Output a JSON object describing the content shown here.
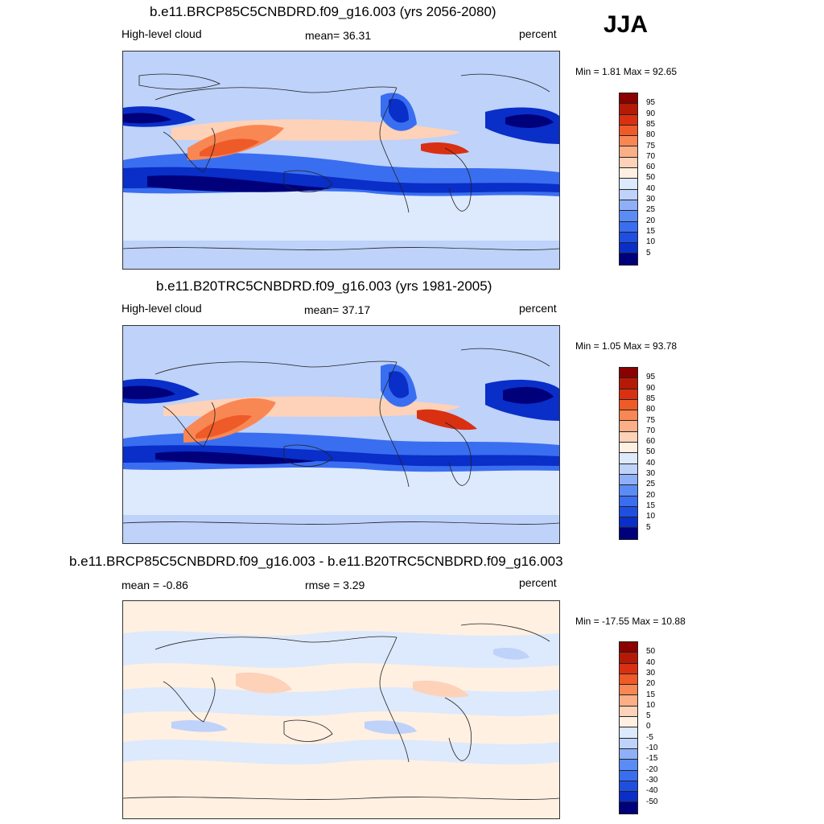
{
  "season": "JJA",
  "palette_abs": [
    "#00007a",
    "#0a2ec8",
    "#1f4fe0",
    "#3a6ef0",
    "#5b8cf5",
    "#8fb0f8",
    "#bed2fa",
    "#dde9fc",
    "#fff0e2",
    "#fed2b8",
    "#fcae86",
    "#f98754",
    "#ee5a28",
    "#d93012",
    "#b41a06",
    "#8b0000"
  ],
  "palette_diff": [
    "#00007a",
    "#0a2ec8",
    "#1f4fe0",
    "#3a6ef0",
    "#5b8cf5",
    "#8fb0f8",
    "#bed2fa",
    "#dde9fc",
    "#fff0e2",
    "#fed2b8",
    "#fcae86",
    "#f98754",
    "#ee5a28",
    "#d93012",
    "#b41a06",
    "#8b0000"
  ],
  "panels": [
    {
      "title": "b.e11.BRCP85C5CNBDRD.f09_g16.003 (yrs 2056-2080)",
      "left_label": "High-level cloud",
      "center_label": "mean=  36.31",
      "units": "percent",
      "minmax": "Min =   1.81 Max =  92.65",
      "levels": [
        "95",
        "90",
        "85",
        "80",
        "75",
        "70",
        "60",
        "50",
        "40",
        "30",
        "25",
        "20",
        "15",
        "10",
        "5"
      ]
    },
    {
      "title": "b.e11.B20TRC5CNBDRD.f09_g16.003 (yrs 1981-2005)",
      "left_label": "High-level cloud",
      "center_label": "mean=  37.17",
      "units": "percent",
      "minmax": "Min =   1.05 Max =  93.78",
      "levels": [
        "95",
        "90",
        "85",
        "80",
        "75",
        "70",
        "60",
        "50",
        "40",
        "30",
        "25",
        "20",
        "15",
        "10",
        "5"
      ]
    },
    {
      "title": "b.e11.BRCP85C5CNBDRD.f09_g16.003 - b.e11.B20TRC5CNBDRD.f09_g16.003",
      "left_label": "mean =  -0.86",
      "center_label": "rmse =   3.29",
      "units": "percent",
      "minmax": "Min = -17.55 Max =  10.88",
      "levels": [
        "50",
        "40",
        "30",
        "20",
        "15",
        "10",
        "5",
        "0",
        "-5",
        "-10",
        "-15",
        "-20",
        "-30",
        "-40",
        "-50"
      ]
    }
  ]
}
